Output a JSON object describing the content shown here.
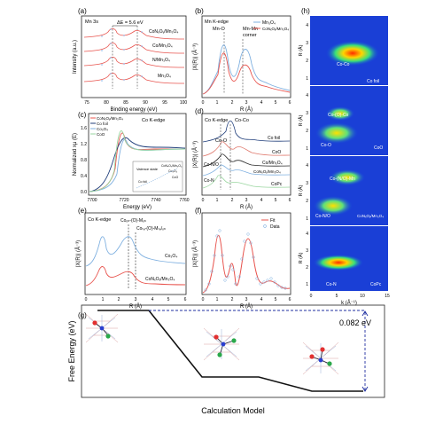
{
  "panels": {
    "a": {
      "letter": "(a)",
      "element_label": "Mn 3s",
      "delta_label": "ΔE = 5.6 eV",
      "xlabel": "Binding energy (eV)",
      "ylabel": "Intensity (a.u.)",
      "xticks": [
        "75",
        "80",
        "85",
        "90",
        "95",
        "100"
      ],
      "series": [
        "CoNₓOᵧ/Mn₃O₄",
        "Co/Mn₃O₄",
        "N/Mn₃O₄",
        "Mn₃O₄"
      ],
      "colors": [
        "#e8544e",
        "#e8544e",
        "#e8544e",
        "#e8544e"
      ]
    },
    "b": {
      "letter": "(b)",
      "element_label": "Mn K-edge",
      "ann1": "Mn-O",
      "ann2": "Mn-Mn",
      "ann3": "corner",
      "xlabel": "R (Å)",
      "ylabel": "|X(R)| (Å⁻³)",
      "xticks": [
        "0",
        "1",
        "2",
        "3",
        "4",
        "5",
        "6"
      ],
      "legend": [
        "Mn₃O₄",
        "CoNₓOᵧ/Mn₃O₄"
      ]
    },
    "c": {
      "letter": "(c)",
      "element_label": "Co K-edge",
      "xlabel": "Energy (eV)",
      "ylabel": "Normalized xμ (E)",
      "xticks": [
        "7700",
        "7720",
        "7740",
        "7760"
      ],
      "yticks": [
        "0.0",
        "0.4",
        "0.8",
        "1.2",
        "1.6"
      ],
      "legend": [
        "CoNₓOᵧ/Mn₃O₄",
        "Co foil",
        "Co₃O₄",
        "CoO"
      ],
      "inset_title": "Valence state",
      "inset_l1": "CoNₓOᵧ/Mn₃O₄",
      "inset_l2": "Co₃O₄",
      "inset_l3": "CoO",
      "inset_l4": "Co foil"
    },
    "d": {
      "letter": "(d)",
      "element_label": "Co K-edge",
      "ann1": "Co-Co",
      "ann2": "Co-O",
      "ann3": "Co-N/O",
      "ann4": "Co-N",
      "xlabel": "R (Å)",
      "ylabel": "|X(R)| (Å⁻³)",
      "xticks": [
        "0",
        "1",
        "2",
        "3",
        "4",
        "5",
        "6"
      ],
      "series": [
        "Co foil",
        "CoO",
        "Co/Mn₃O₄",
        "CoNₓOᵧ/Mn₃O₄",
        "CoPc"
      ]
    },
    "e": {
      "letter": "(e)",
      "element_label": "Co K-edge",
      "ann1": "Coₒₕ-(O)-Mₒₕ",
      "ann2": "Coₜₑ-(O)-Mₜₑ/ₒₕ",
      "xlabel": "R (Å)",
      "ylabel": "|X(R)| (Å⁻³)",
      "xticks": [
        "0",
        "1",
        "2",
        "3",
        "4",
        "5",
        "6"
      ],
      "series": [
        "Co₃O₄",
        "CoNₓOᵧ/Mn₃O₄"
      ]
    },
    "f": {
      "letter": "(f)",
      "xlabel": "R (Å)",
      "ylabel": "|X(R)| (Å⁻³)",
      "xticks": [
        "0",
        "1",
        "2",
        "3",
        "4",
        "5",
        "6"
      ],
      "legend": [
        "Fit",
        "Data"
      ]
    },
    "h": {
      "letter": "(h)",
      "ylabel": "R (Å)",
      "xlabel": "k (Å⁻¹)",
      "xticks": [
        "0",
        "5",
        "10",
        "15"
      ],
      "yticks": [
        "1",
        "2",
        "3",
        "4"
      ],
      "maps": [
        {
          "name": "Co foil",
          "peak": "Co-Co"
        },
        {
          "name": "CoO",
          "peak1": "Co-O",
          "peak2": "Co-(O)-Co"
        },
        {
          "name": "CoNₓOᵧ/Mn₃O₄",
          "peak1": "Co-N/O",
          "peak2": "Co-(N/O)-Mn"
        },
        {
          "name": "CoPc",
          "peak": "Co-N"
        }
      ]
    },
    "g": {
      "letter": "(g)",
      "ylabel": "Free Energy (eV)",
      "xlabel": "Calculation Model",
      "energy_label": "0.082 eV"
    }
  }
}
